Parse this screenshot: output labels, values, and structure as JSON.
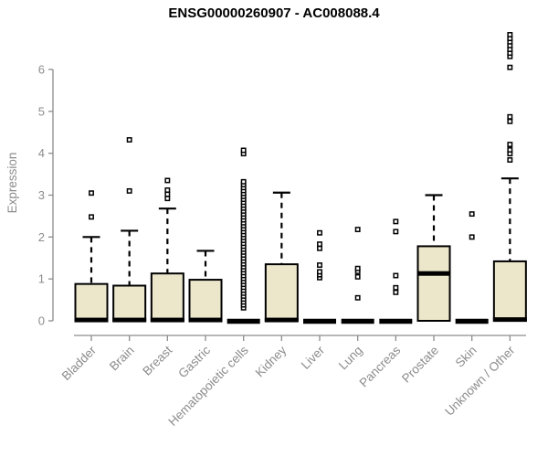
{
  "chart_data": {
    "type": "boxplot",
    "title": "ENSG00000260907 - AC008088.4",
    "ylabel": "Expression",
    "xlabel": "",
    "ylim": [
      0,
      6.9
    ],
    "yticks": [
      0,
      1,
      2,
      3,
      4,
      5,
      6
    ],
    "grid": false,
    "legend": "none",
    "categories": [
      "Bladder",
      "Brain",
      "Breast",
      "Gastric",
      "Hematopoietic cells",
      "Kidney",
      "Liver",
      "Lung",
      "Pancreas",
      "Prostate",
      "Skin",
      "Unknown / Other"
    ],
    "series": [
      {
        "name": "Bladder",
        "q1": 0,
        "median": 0.02,
        "q3": 0.88,
        "whisker_low": 0,
        "whisker_high": 2.0,
        "outliers": [
          2.48,
          3.05
        ]
      },
      {
        "name": "Brain",
        "q1": 0,
        "median": 0.02,
        "q3": 0.84,
        "whisker_low": 0,
        "whisker_high": 2.15,
        "outliers": [
          3.1,
          4.32
        ]
      },
      {
        "name": "Breast",
        "q1": 0,
        "median": 0.02,
        "q3": 1.13,
        "whisker_low": 0,
        "whisker_high": 2.68,
        "outliers": [
          2.92,
          3.02,
          3.12,
          3.35
        ]
      },
      {
        "name": "Gastric",
        "q1": 0,
        "median": 0.02,
        "q3": 0.98,
        "whisker_low": 0,
        "whisker_high": 1.67,
        "outliers": []
      },
      {
        "name": "Hematopoietic cells",
        "q1": 0,
        "median": 0,
        "q3": 0,
        "whisker_low": 0,
        "whisker_high": 0,
        "outliers": [
          0.31,
          0.38,
          0.45,
          0.52,
          0.59,
          0.66,
          0.73,
          0.8,
          0.87,
          0.94,
          1.01,
          1.08,
          1.15,
          1.22,
          1.29,
          1.36,
          1.43,
          1.5,
          1.57,
          1.64,
          1.71,
          1.78,
          1.85,
          1.92,
          1.99,
          2.06,
          2.13,
          2.2,
          2.27,
          2.34,
          2.41,
          2.48,
          2.55,
          2.62,
          2.69,
          2.76,
          2.83,
          2.9,
          2.97,
          3.04,
          3.11,
          3.18,
          3.25,
          3.32,
          3.99,
          4.07
        ]
      },
      {
        "name": "Kidney",
        "q1": 0,
        "median": 0.02,
        "q3": 1.35,
        "whisker_low": 0,
        "whisker_high": 3.06,
        "outliers": []
      },
      {
        "name": "Liver",
        "q1": 0,
        "median": 0,
        "q3": 0,
        "whisker_low": 0,
        "whisker_high": 0,
        "outliers": [
          1.03,
          1.1,
          1.17,
          1.33,
          1.73,
          1.83,
          2.1
        ]
      },
      {
        "name": "Lung",
        "q1": 0,
        "median": 0,
        "q3": 0,
        "whisker_low": 0,
        "whisker_high": 0,
        "outliers": [
          0.55,
          1.05,
          1.18,
          1.25,
          2.18
        ]
      },
      {
        "name": "Pancreas",
        "q1": 0,
        "median": 0,
        "q3": 0,
        "whisker_low": 0,
        "whisker_high": 0,
        "outliers": [
          0.68,
          0.79,
          1.08,
          2.13,
          2.37
        ]
      },
      {
        "name": "Prostate",
        "q1": 0,
        "median": 1.13,
        "q3": 1.78,
        "whisker_low": 0,
        "whisker_high": 3.0,
        "outliers": []
      },
      {
        "name": "Skin",
        "q1": 0,
        "median": 0,
        "q3": 0,
        "whisker_low": 0,
        "whisker_high": 0,
        "outliers": [
          2.0,
          2.55
        ]
      },
      {
        "name": "Unknown / Other",
        "q1": 0,
        "median": 0.03,
        "q3": 1.42,
        "whisker_low": 0,
        "whisker_high": 3.4,
        "outliers": [
          3.84,
          3.99,
          4.08,
          4.21,
          4.76,
          4.87,
          6.05,
          6.31,
          6.39,
          6.48,
          6.57,
          6.66,
          6.74,
          6.83
        ]
      }
    ],
    "colors": {
      "box_fill": "#ece7cb",
      "box_border": "#000000",
      "whisker": "#000000",
      "median": "#000000",
      "outlier": "#000000",
      "axis": "#8c8c8c",
      "tick_label": "#8c8c8c",
      "title": "#000000"
    }
  }
}
